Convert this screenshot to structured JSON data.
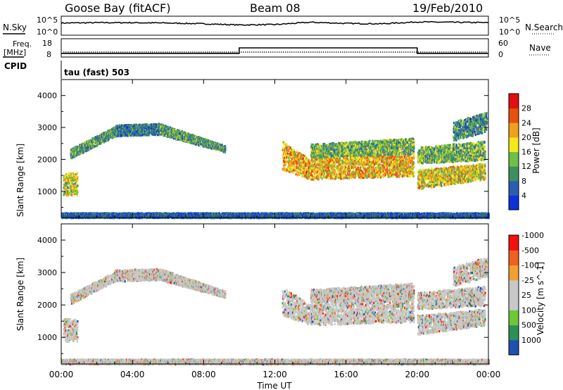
{
  "header": {
    "station": "Goose Bay (fitACF)",
    "beam": "Beam 08",
    "date": "19/Feb/2010"
  },
  "strip_labels": {
    "nsky": "N.Sky",
    "nsky_ticks": [
      "10^5",
      "10^0"
    ],
    "nsearch": "N.Search",
    "nsearch_ticks": [
      "10^5",
      "10^0"
    ],
    "freq_label_1": "Freq.",
    "freq_label_2": "[MHz]",
    "freq_ticks": [
      "18",
      "8"
    ],
    "nave": "Nave",
    "nave_ticks": [
      "60",
      "0"
    ],
    "cpid": "CPID",
    "cpid_value": "tau (fast) 503"
  },
  "colors": {
    "power": [
      "#1030d8",
      "#2a5fb0",
      "#3e8f5f",
      "#6fbf4a",
      "#f4e81c",
      "#f0a020",
      "#e85010",
      "#e01010"
    ],
    "velocity": [
      "#f21010",
      "#f06020",
      "#f0a030",
      "#c8c8c8",
      "#c8c8c8",
      "#6cc838",
      "#2e8f55",
      "#1f4fb0"
    ],
    "ground_scatter": "#c8c8c8"
  },
  "chart_data": [
    {
      "type": "line",
      "title": "N.Sky / N.Search",
      "x": [
        "00:00",
        "02:00",
        "04:00",
        "06:00",
        "08:00",
        "10:00",
        "12:00",
        "14:00",
        "16:00",
        "18:00",
        "20:00",
        "22:00",
        "24:00"
      ],
      "series": [
        {
          "name": "N.Sky",
          "values": [
            3.2,
            3.3,
            3.3,
            3.2,
            3.0,
            2.7,
            2.8,
            3.4,
            3.1,
            3.0,
            3.5,
            3.4,
            3.3
          ]
        }
      ],
      "ylim": [
        0,
        5
      ],
      "log_scale": true
    },
    {
      "type": "line",
      "title": "Freq. [MHz]",
      "x": [
        "00:00",
        "10:00",
        "10:00",
        "20:00",
        "20:00",
        "24:00"
      ],
      "series": [
        {
          "name": "Freq.",
          "values": [
            10,
            10,
            13,
            13,
            10,
            10
          ]
        }
      ],
      "ylim": [
        8,
        18
      ]
    },
    {
      "type": "heatmap",
      "ylabel": "Slant Range [km]",
      "colorbar_label": "Power [dB]",
      "colorbar_ticks": [
        "4",
        "8",
        "12",
        "16",
        "20",
        "24",
        "28"
      ],
      "yticks": [
        "1000",
        "2000",
        "3000",
        "4000"
      ],
      "ylim": [
        180,
        4500
      ],
      "clim": [
        0,
        30
      ],
      "regions": [
        {
          "t0": 0.5,
          "t1": 3.0,
          "r0": 2050,
          "r1": 2350,
          "r_end0": 2750,
          "r_end1": 3050,
          "p": 10
        },
        {
          "t0": 3.0,
          "t1": 5.5,
          "r0": 2750,
          "r1": 3100,
          "r_end0": 2800,
          "r_end1": 3150,
          "p": 8
        },
        {
          "t0": 5.5,
          "t1": 9.2,
          "r0": 2800,
          "r1": 3150,
          "r_end0": 2250,
          "r_end1": 2450,
          "p": 10
        },
        {
          "t0": 0.1,
          "t1": 0.9,
          "r0": 900,
          "r1": 1600,
          "r_end0": 900,
          "r_end1": 1600,
          "p": 16
        },
        {
          "t0": 12.4,
          "t1": 14.0,
          "r0": 1700,
          "r1": 2600,
          "r_end0": 1400,
          "r_end1": 2000,
          "p": 20
        },
        {
          "t0": 14.0,
          "t1": 19.8,
          "r0": 1400,
          "r1": 2100,
          "r_end0": 1500,
          "r_end1": 2200,
          "p": 19
        },
        {
          "t0": 14.0,
          "t1": 19.8,
          "r0": 2100,
          "r1": 2500,
          "r_end0": 2200,
          "r_end1": 2700,
          "p": 12
        },
        {
          "t0": 20.0,
          "t1": 23.8,
          "r0": 1100,
          "r1": 1700,
          "r_end0": 1400,
          "r_end1": 1900,
          "p": 17
        },
        {
          "t0": 20.0,
          "t1": 23.8,
          "r0": 1900,
          "r1": 2400,
          "r_end0": 2000,
          "r_end1": 2600,
          "p": 12
        },
        {
          "t0": 22.0,
          "t1": 23.9,
          "r0": 2600,
          "r1": 3200,
          "r_end0": 2900,
          "r_end1": 3500,
          "p": 9
        },
        {
          "t0": 0.0,
          "t1": 24.0,
          "r0": 200,
          "r1": 350,
          "r_end0": 200,
          "r_end1": 350,
          "p": 5
        }
      ]
    },
    {
      "type": "heatmap",
      "ylabel": "Slant Range [km]",
      "colorbar_label": "Velocity [m s^-1]",
      "colorbar_ticks": [
        "-1000",
        "-500",
        "-100",
        "-25",
        "25",
        "100",
        "500",
        "1000"
      ],
      "yticks": [
        "1000",
        "2000",
        "3000",
        "4000"
      ],
      "ylim": [
        180,
        4500
      ],
      "clim": [
        -1000,
        1000
      ],
      "xticks": [
        "00:00",
        "04:00",
        "08:00",
        "12:00",
        "16:00",
        "20:00",
        "00:00"
      ],
      "xlabel": "Time UT",
      "xlim": [
        0,
        24
      ]
    }
  ]
}
